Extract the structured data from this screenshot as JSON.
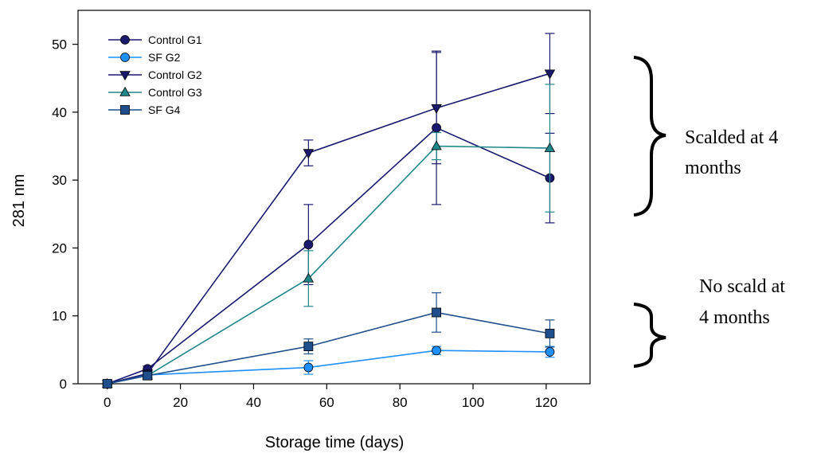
{
  "chart_data": {
    "type": "line",
    "xlabel": "Storage time (days)",
    "ylabel": "281 nm",
    "xlim": [
      -8,
      132
    ],
    "ylim": [
      0,
      55
    ],
    "xticks": [
      0,
      20,
      40,
      60,
      80,
      100,
      120
    ],
    "yticks": [
      0,
      10,
      20,
      30,
      40,
      50
    ],
    "grid": false,
    "legend_position": "top-left",
    "series": [
      {
        "name": "Control G1",
        "color": "#191970",
        "marker": "circle",
        "x": [
          0,
          11,
          55,
          90,
          121
        ],
        "y": [
          0,
          2.2,
          20.5,
          37.7,
          30.3
        ],
        "err": [
          0.2,
          0.4,
          5.9,
          11.3,
          6.6
        ]
      },
      {
        "name": "SF G2",
        "color": "#1E90FF",
        "marker": "circle",
        "x": [
          0,
          11,
          55,
          90,
          121
        ],
        "y": [
          0,
          1.3,
          2.4,
          4.9,
          4.7
        ],
        "err": [
          0.2,
          0.3,
          1.0,
          0.6,
          0.8
        ]
      },
      {
        "name": "Control G2",
        "color": "#191970",
        "marker": "triangle-down",
        "x": [
          0,
          11,
          55,
          90,
          121
        ],
        "y": [
          0,
          1.5,
          34.0,
          40.6,
          45.7
        ],
        "err": [
          0.2,
          0.3,
          1.9,
          8.2,
          5.9
        ]
      },
      {
        "name": "Control G3",
        "color": "#20878A",
        "marker": "triangle-up",
        "x": [
          0,
          11,
          55,
          90,
          121
        ],
        "y": [
          0,
          1.2,
          15.5,
          35.0,
          34.7
        ],
        "err": [
          0.2,
          0.3,
          4.1,
          2.0,
          9.4
        ]
      },
      {
        "name": "SF G4",
        "color": "#1F4E8C",
        "marker": "square",
        "x": [
          0,
          11,
          55,
          90,
          121
        ],
        "y": [
          0,
          1.2,
          5.5,
          10.5,
          7.4
        ],
        "err": [
          0.2,
          0.3,
          1.1,
          2.9,
          2.0
        ]
      }
    ],
    "annotations": [
      {
        "lines": [
          "Scalded at 4",
          "months"
        ]
      },
      {
        "lines": [
          "No scald at",
          "4 months"
        ]
      }
    ]
  }
}
